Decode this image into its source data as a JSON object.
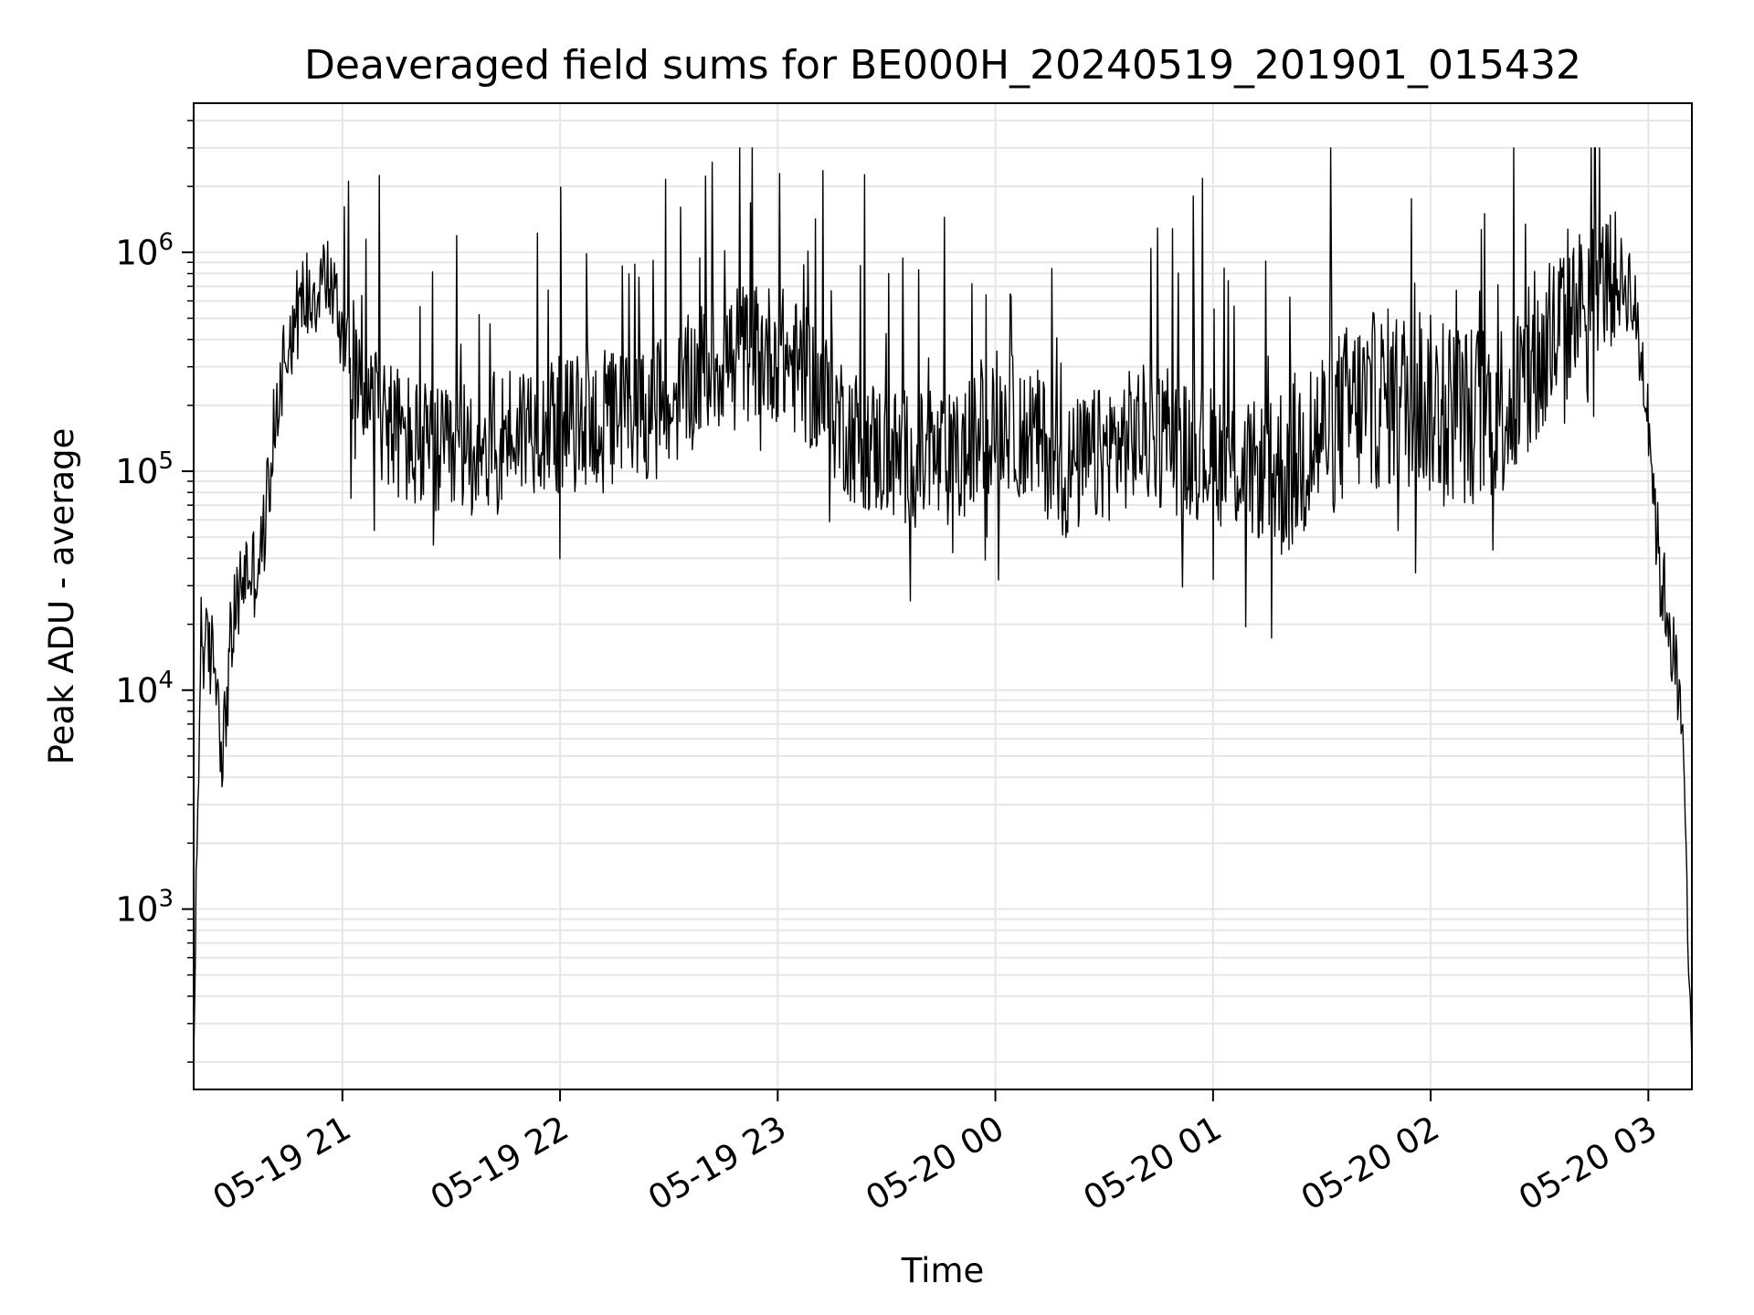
{
  "chart_data": {
    "type": "line",
    "title": "Deaveraged field sums for BE000H_20240519_201901_015432",
    "xlabel": "Time",
    "ylabel": "Peak ADU - average",
    "y_scale": "log",
    "ylim": [
      150,
      4800000
    ],
    "xlim": [
      "2024-05-19 20:19",
      "2024-05-20 03:12"
    ],
    "grid": true,
    "line_color": "#000000",
    "grid_color": "#e6e6e6",
    "x_ticks": [
      {
        "value": "2024-05-19 21:00",
        "label": "05-19 21"
      },
      {
        "value": "2024-05-19 22:00",
        "label": "05-19 22"
      },
      {
        "value": "2024-05-19 23:00",
        "label": "05-19 23"
      },
      {
        "value": "2024-05-20 00:00",
        "label": "05-20 00"
      },
      {
        "value": "2024-05-20 01:00",
        "label": "05-20 01"
      },
      {
        "value": "2024-05-20 02:00",
        "label": "05-20 02"
      },
      {
        "value": "2024-05-20 03:00",
        "label": "05-20 03"
      }
    ],
    "y_ticks": [
      {
        "value": 1000,
        "base": "10",
        "exp": "3"
      },
      {
        "value": 10000,
        "base": "10",
        "exp": "4"
      },
      {
        "value": 100000,
        "base": "10",
        "exp": "5"
      },
      {
        "value": 1000000,
        "base": "10",
        "exp": "6"
      }
    ],
    "series": [
      {
        "x": [
          "2024-05-19 20:19",
          "2024-05-19 20:21",
          "2024-05-19 20:22",
          "2024-05-19 20:25",
          "2024-05-19 20:27",
          "2024-05-19 20:29",
          "2024-05-19 20:31",
          "2024-05-19 20:33",
          "2024-05-19 20:36",
          "2024-05-19 20:38",
          "2024-05-19 20:40",
          "2024-05-19 20:42",
          "2024-05-19 20:44",
          "2024-05-19 20:47",
          "2024-05-19 20:50",
          "2024-05-19 20:53",
          "2024-05-19 20:55",
          "2024-05-19 20:57",
          "2024-05-19 20:59",
          "2024-05-19 21:02",
          "2024-05-19 21:05",
          "2024-05-19 21:10",
          "2024-05-19 21:15",
          "2024-05-19 21:20",
          "2024-05-19 21:25",
          "2024-05-19 21:30",
          "2024-05-19 21:35",
          "2024-05-19 21:40",
          "2024-05-19 21:45",
          "2024-05-19 21:50",
          "2024-05-19 21:55",
          "2024-05-19 22:00",
          "2024-05-19 22:10",
          "2024-05-19 22:20",
          "2024-05-19 22:30",
          "2024-05-19 22:40",
          "2024-05-19 22:50",
          "2024-05-19 23:00",
          "2024-05-19 23:10",
          "2024-05-19 23:20",
          "2024-05-19 23:30",
          "2024-05-19 23:40",
          "2024-05-19 23:50",
          "2024-05-20 00:00",
          "2024-05-20 00:10",
          "2024-05-20 00:20",
          "2024-05-20 00:30",
          "2024-05-20 00:40",
          "2024-05-20 00:50",
          "2024-05-20 01:00",
          "2024-05-20 01:10",
          "2024-05-20 01:20",
          "2024-05-20 01:30",
          "2024-05-20 01:40",
          "2024-05-20 01:50",
          "2024-05-20 02:00",
          "2024-05-20 02:10",
          "2024-05-20 02:20",
          "2024-05-20 02:30",
          "2024-05-20 02:40",
          "2024-05-20 02:45",
          "2024-05-20 02:50",
          "2024-05-20 02:55",
          "2024-05-20 03:00",
          "2024-05-20 03:03",
          "2024-05-20 03:06",
          "2024-05-20 03:08",
          "2024-05-20 03:10",
          "2024-05-20 03:12"
        ],
        "y": [
          200,
          20000,
          15000,
          14000,
          5000,
          15000,
          25000,
          35000,
          35000,
          45000,
          100000,
          200000,
          350000,
          500000,
          650000,
          700000,
          800000,
          700000,
          500000,
          300000,
          250000,
          200000,
          150000,
          130000,
          120000,
          110000,
          130000,
          130000,
          150000,
          160000,
          170000,
          160000,
          170000,
          180000,
          200000,
          300000,
          350000,
          350000,
          250000,
          150000,
          120000,
          110000,
          110000,
          180000,
          150000,
          100000,
          120000,
          150000,
          130000,
          120000,
          100000,
          100000,
          150000,
          200000,
          220000,
          200000,
          180000,
          200000,
          300000,
          600000,
          700000,
          750000,
          700000,
          200000,
          35000,
          20000,
          10000,
          4000,
          200
        ]
      }
    ]
  }
}
